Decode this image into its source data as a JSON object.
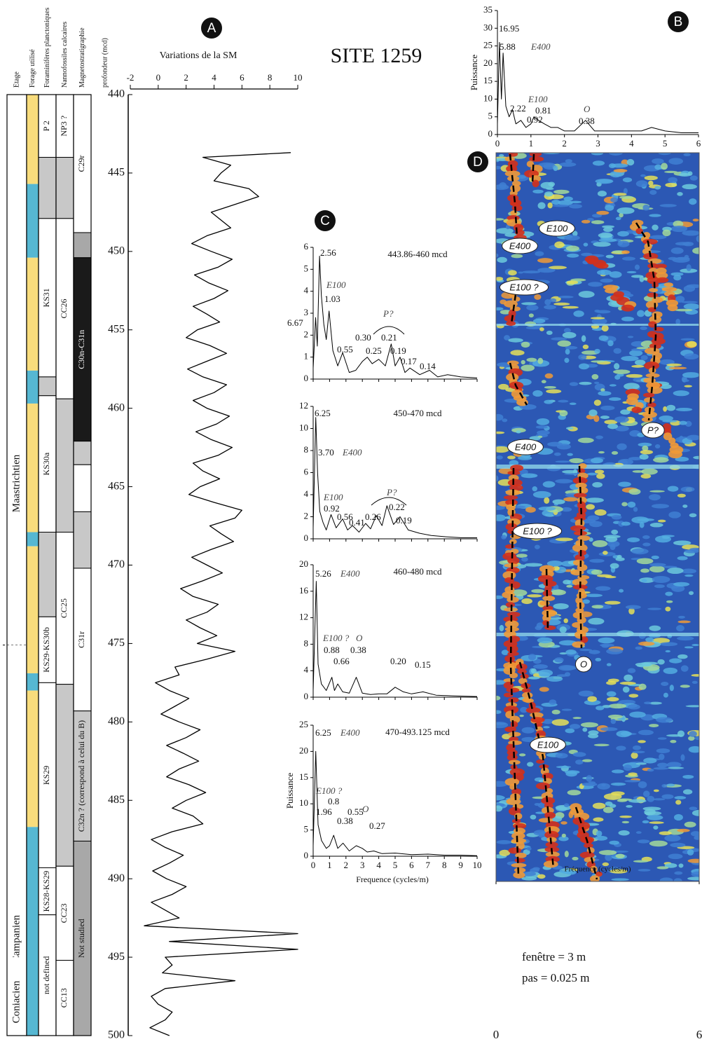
{
  "title": "SITE 1259",
  "footer_text": [
    "fenêtre = 3 m",
    "pas = 0.025 m"
  ],
  "stratigraphy": {
    "columns": [
      {
        "header": "Etage",
        "units": [
          {
            "label": "Maastrichtien",
            "top": 440,
            "bottom": 475.1,
            "color": "#ffffff",
            "boundary": "dashed"
          },
          {
            "label": "Campanien",
            "top": 475.1,
            "bottom": 495,
            "color": "#ffffff"
          },
          {
            "label": "Coniacien",
            "top": 495,
            "bottom": 500,
            "color": "#ffffff"
          }
        ]
      },
      {
        "header": "Forage utilisé",
        "units": [
          {
            "top": 440,
            "bottom": 445.7,
            "color": "#f8dc7c"
          },
          {
            "top": 445.7,
            "bottom": 450.4,
            "color": "#56b7d2"
          },
          {
            "top": 450.4,
            "bottom": 457.6,
            "color": "#f8dc7c"
          },
          {
            "top": 457.6,
            "bottom": 459.7,
            "color": "#56b7d2"
          },
          {
            "top": 459.7,
            "bottom": 467.9,
            "color": "#f8dc7c"
          },
          {
            "top": 467.9,
            "bottom": 468.8,
            "color": "#56b7d2"
          },
          {
            "top": 468.8,
            "bottom": 476.9,
            "color": "#f8dc7c"
          },
          {
            "top": 476.9,
            "bottom": 478,
            "color": "#56b7d2"
          },
          {
            "top": 478,
            "bottom": 486.7,
            "color": "#f8dc7c"
          },
          {
            "top": 486.7,
            "bottom": 500,
            "color": "#56b7d2"
          }
        ]
      },
      {
        "header": "Foraminifères planctoniques",
        "units": [
          {
            "label": "P 2",
            "top": 440,
            "bottom": 444,
            "color": "#ffffff"
          },
          {
            "top": 444,
            "bottom": 447.9,
            "color": "#c8c8c8"
          },
          {
            "label": "KS31",
            "top": 447.9,
            "bottom": 458,
            "color": "#ffffff"
          },
          {
            "top": 458,
            "bottom": 459.2,
            "color": "#c8c8c8"
          },
          {
            "label": "KS30a",
            "top": 459.2,
            "bottom": 467.9,
            "color": "#ffffff"
          },
          {
            "top": 467.9,
            "bottom": 473.3,
            "color": "#c8c8c8"
          },
          {
            "label": "KS29-KS30b",
            "top": 473.3,
            "bottom": 477.5,
            "color": "#ffffff"
          },
          {
            "label": "KS29",
            "top": 477.5,
            "bottom": 489.3,
            "color": "#ffffff"
          },
          {
            "label": "KS28-KS29",
            "top": 489.3,
            "bottom": 492.3,
            "color": "#ffffff"
          },
          {
            "label": "not defined",
            "top": 492.3,
            "bottom": 500,
            "color": "#ffffff"
          }
        ]
      },
      {
        "header": "Nannofossiles calcaires",
        "units": [
          {
            "label": "NP3 ?",
            "top": 440,
            "bottom": 444,
            "color": "#ffffff"
          },
          {
            "top": 444,
            "bottom": 447.9,
            "color": "#c8c8c8"
          },
          {
            "label": "CC26",
            "top": 447.9,
            "bottom": 459.4,
            "color": "#ffffff"
          },
          {
            "top": 459.4,
            "bottom": 467.9,
            "color": "#c8c8c8"
          },
          {
            "label": "CC25",
            "top": 467.9,
            "bottom": 477.6,
            "color": "#ffffff"
          },
          {
            "top": 477.6,
            "bottom": 489.2,
            "color": "#c8c8c8"
          },
          {
            "label": "CC23",
            "top": 489.2,
            "bottom": 495.2,
            "color": "#ffffff"
          },
          {
            "label": "CC13",
            "top": 495.2,
            "bottom": 500,
            "color": "#ffffff"
          }
        ]
      },
      {
        "header": "Magnetostratigraphie",
        "units": [
          {
            "label": "C29r",
            "top": 440,
            "bottom": 448.8,
            "color": "#ffffff"
          },
          {
            "top": 448.8,
            "bottom": 450.4,
            "color": "#a8a8a8"
          },
          {
            "label": "C30n-C31n",
            "top": 450.4,
            "bottom": 462.1,
            "color": "#1a1a1a"
          },
          {
            "top": 462.1,
            "bottom": 463.6,
            "color": "#c8c8c8"
          },
          {
            "top": 463.6,
            "bottom": 466.6,
            "color": "#ffffff"
          },
          {
            "top": 466.6,
            "bottom": 470.2,
            "color": "#c8c8c8"
          },
          {
            "label": "C31r",
            "top": 470.2,
            "bottom": 479.3,
            "color": "#ffffff"
          },
          {
            "label": "C32n ? (correspond à celui du B)",
            "top": 479.3,
            "bottom": 487.6,
            "color": "#c8c8c8"
          },
          {
            "label": "Not studied",
            "top": 487.6,
            "bottom": 500,
            "color": "#a8a8a8"
          }
        ]
      }
    ]
  },
  "chart_data": [
    {
      "type": "line",
      "panel": "A",
      "title": "Variations de la SM",
      "xlabel": "profondeur (mcd)",
      "orientation": "vertical",
      "color": "#000000",
      "xlim": [
        440,
        500
      ],
      "xticks": [
        440,
        445,
        450,
        455,
        460,
        465,
        470,
        475,
        480,
        485,
        490,
        495,
        500
      ],
      "ylim": [
        -2,
        10
      ],
      "yticks": [
        -2,
        0,
        2,
        4,
        6,
        8,
        10
      ],
      "x": [
        443.7,
        444,
        444.5,
        445,
        445.5,
        446,
        446.5,
        447,
        447.5,
        448,
        448.5,
        449,
        449.5,
        450,
        450.5,
        451,
        451.5,
        452,
        452.5,
        453,
        453.5,
        454,
        454.5,
        455,
        455.5,
        456,
        456.5,
        457,
        457.5,
        458,
        458.5,
        459,
        459.5,
        460,
        460.5,
        461,
        461.5,
        462,
        462.5,
        463,
        463.5,
        464,
        464.5,
        465,
        465.5,
        466,
        466.5,
        467,
        467.5,
        468,
        468.5,
        469,
        469.5,
        470,
        470.5,
        471,
        471.5,
        472,
        472.5,
        473,
        473.5,
        474,
        474.5,
        475,
        475.5,
        476,
        476.5,
        477,
        477.5,
        478,
        478.5,
        479,
        479.5,
        480,
        480.5,
        481,
        481.5,
        482,
        482.5,
        483,
        483.5,
        484,
        484.5,
        485,
        485.5,
        486,
        486.5,
        487,
        487.5,
        488,
        488.5,
        489,
        489.5,
        490,
        490.5,
        491,
        491.5,
        492,
        492.5,
        493,
        493.5,
        494,
        494.5,
        495,
        495.5,
        496,
        496.5,
        497,
        497.5,
        498,
        498.5,
        499,
        499.5,
        500
      ],
      "values": [
        9.5,
        3.2,
        5.2,
        4.5,
        4.0,
        6.5,
        7.2,
        5.5,
        3.8,
        4.5,
        5.2,
        3.5,
        2.4,
        3.8,
        5.3,
        4.3,
        2.6,
        3.6,
        5.0,
        4.0,
        2.5,
        3.5,
        4.4,
        2.8,
        2.0,
        3.7,
        4.9,
        3.5,
        2.1,
        3.2,
        4.9,
        4.0,
        2.5,
        3.5,
        5.1,
        4.2,
        2.7,
        3.8,
        5.3,
        4.3,
        2.5,
        3.2,
        4.4,
        3.0,
        2.2,
        4.0,
        6.0,
        5.5,
        3.7,
        4.5,
        5.4,
        3.8,
        2.4,
        3.5,
        4.6,
        3.2,
        1.6,
        2.5,
        4.3,
        3.5,
        2.0,
        3.0,
        4.2,
        2.8,
        5.5,
        3.5,
        1.2,
        1.5,
        -0.2,
        0.8,
        2.2,
        1.2,
        0.2,
        1.5,
        3.0,
        2.0,
        0.6,
        1.8,
        2.9,
        1.5,
        0.6,
        2.2,
        3.4,
        2.0,
        1.0,
        2.5,
        3.2,
        1.0,
        -0.5,
        0.5,
        1.8,
        0.8,
        -0.4,
        0.6,
        2.0,
        1.0,
        -0.5,
        0.5,
        1.5,
        -1.0,
        10,
        0.8,
        10,
        0.5,
        1.0,
        0.3,
        5.5,
        0.5,
        -0.5,
        0.0,
        1.0,
        0.5,
        -0.6,
        0.8
      ]
    },
    {
      "type": "line",
      "panel": "B",
      "ylabel": "Puissance",
      "color": "#000000",
      "xlim": [
        0,
        6
      ],
      "xticks": [
        0,
        1,
        2,
        3,
        4,
        5,
        6
      ],
      "xtick_labels": true,
      "ylim": [
        0,
        35
      ],
      "yticks": [
        0,
        5,
        10,
        15,
        20,
        25,
        30,
        35
      ],
      "x": [
        0,
        0.06,
        0.12,
        0.17,
        0.25,
        0.35,
        0.45,
        0.55,
        0.7,
        0.85,
        1.0,
        1.09,
        1.23,
        1.4,
        1.6,
        1.8,
        2.0,
        2.3,
        2.63,
        2.9,
        3.3,
        3.8,
        4.3,
        4.6,
        5.0,
        5.5,
        6.0
      ],
      "values": [
        3,
        26,
        10,
        23,
        8,
        5,
        7,
        3,
        4,
        2,
        3,
        5,
        4,
        3,
        2,
        2,
        1,
        1,
        4,
        1,
        1,
        1,
        1,
        2,
        1,
        0.5,
        0.5
      ],
      "annotations": [
        {
          "text": "16.95"
        },
        {
          "text": "5.88"
        },
        {
          "text": "E400",
          "italic": true
        },
        {
          "text": "2.22"
        },
        {
          "text": "E100",
          "italic": true
        },
        {
          "text": "0.81"
        },
        {
          "text": "0.92"
        },
        {
          "text": "O",
          "italic": true
        },
        {
          "text": "0.38"
        }
      ]
    },
    {
      "type": "line",
      "panel": "C",
      "subtitle": "443.86-460 mcd",
      "color": "#000000",
      "xlim": [
        0,
        10
      ],
      "xticks": [
        0,
        1,
        2,
        3,
        4,
        5,
        6,
        7,
        8,
        9,
        10
      ],
      "xtick_labels": false,
      "ylim": [
        0,
        6
      ],
      "yticks": [
        0,
        1,
        2,
        3,
        4,
        5,
        6
      ],
      "x": [
        0,
        0.15,
        0.25,
        0.39,
        0.5,
        0.65,
        0.8,
        0.97,
        1.2,
        1.5,
        1.8,
        2.2,
        2.6,
        3.0,
        3.3,
        3.6,
        4.0,
        4.4,
        4.76,
        5.0,
        5.3,
        5.6,
        5.9,
        6.5,
        7.1,
        7.6,
        8.2,
        9,
        10
      ],
      "values": [
        0.5,
        2.8,
        1.5,
        5.6,
        3.8,
        2.5,
        1.8,
        3.1,
        1.3,
        0.6,
        1.2,
        0.3,
        0.4,
        0.8,
        1.0,
        0.7,
        0.9,
        0.6,
        1.6,
        0.6,
        1.0,
        0.3,
        0.5,
        0.2,
        0.4,
        0.1,
        0.2,
        0.1,
        0.05
      ],
      "annotations": [
        {
          "text": "2.56"
        },
        {
          "text": "E100",
          "italic": true
        },
        {
          "text": "1.03"
        },
        {
          "text": "6.67"
        },
        {
          "text": "0.55"
        },
        {
          "text": "0.30"
        },
        {
          "text": "P?",
          "italic": true
        },
        {
          "text": "0.21"
        },
        {
          "text": "0.25"
        },
        {
          "text": "0.19"
        },
        {
          "text": "0.17"
        },
        {
          "text": "0.14"
        }
      ]
    },
    {
      "type": "line",
      "subtitle": "450-470 mcd",
      "color": "#000000",
      "xlim": [
        0,
        10
      ],
      "xticks": [
        0,
        1,
        2,
        3,
        4,
        5,
        6,
        7,
        8,
        9,
        10
      ],
      "xtick_labels": false,
      "ylim": [
        0,
        12
      ],
      "yticks": [
        0,
        2,
        4,
        6,
        8,
        10,
        12
      ],
      "x": [
        0,
        0.16,
        0.27,
        0.4,
        0.6,
        0.8,
        1.09,
        1.4,
        1.8,
        2.1,
        2.4,
        2.8,
        3.2,
        3.5,
        3.85,
        4.2,
        4.5,
        4.9,
        5.3,
        5.8,
        6.5,
        7.2,
        8,
        9,
        10
      ],
      "values": [
        1,
        11,
        6,
        2.5,
        1.5,
        0.8,
        2.2,
        1.0,
        1.8,
        0.8,
        1.2,
        0.6,
        1.4,
        0.9,
        2.1,
        1.2,
        3.0,
        1.3,
        2.0,
        0.8,
        0.5,
        0.3,
        0.2,
        0.1,
        0.1
      ],
      "annotations": [
        {
          "text": "6.25"
        },
        {
          "text": "3.70"
        },
        {
          "text": "E400",
          "italic": true
        },
        {
          "text": "E100",
          "italic": true
        },
        {
          "text": "0.92"
        },
        {
          "text": "0.56"
        },
        {
          "text": "0.41"
        },
        {
          "text": "0.26"
        },
        {
          "text": "P?",
          "italic": true
        },
        {
          "text": "0.22"
        },
        {
          "text": "0.19"
        }
      ]
    },
    {
      "type": "line",
      "subtitle": "460-480 mcd",
      "color": "#000000",
      "xlim": [
        0,
        10
      ],
      "xticks": [
        0,
        1,
        2,
        3,
        4,
        5,
        6,
        7,
        8,
        9,
        10
      ],
      "xtick_labels": false,
      "ylim": [
        0,
        20
      ],
      "yticks": [
        0,
        4,
        8,
        12,
        16,
        20
      ],
      "x": [
        0,
        0.19,
        0.3,
        0.5,
        0.8,
        1.14,
        1.3,
        1.5,
        1.8,
        2.2,
        2.63,
        3,
        3.5,
        4,
        4.5,
        5,
        5.5,
        6,
        6.7,
        7.5,
        8.5,
        10
      ],
      "values": [
        1,
        17.5,
        5,
        2,
        1,
        3,
        1,
        2,
        0.8,
        0.6,
        3,
        0.6,
        0.4,
        0.5,
        0.5,
        1.5,
        0.8,
        0.5,
        0.8,
        0.3,
        0.2,
        0.1
      ],
      "annotations": [
        {
          "text": "5.26"
        },
        {
          "text": "E400",
          "italic": true
        },
        {
          "text": "E100 ?",
          "italic": true
        },
        {
          "text": "O",
          "italic": true
        },
        {
          "text": "0.88"
        },
        {
          "text": "0.66"
        },
        {
          "text": "0.38"
        },
        {
          "text": "0.20"
        },
        {
          "text": "0.15"
        }
      ]
    },
    {
      "type": "line",
      "subtitle": "470-493.125 mcd",
      "xlabel": "Frequence (cycles/m)",
      "ylabel": "Puissance",
      "color": "#000000",
      "xlim": [
        0,
        10
      ],
      "xticks": [
        0,
        1,
        2,
        3,
        4,
        5,
        6,
        7,
        8,
        9,
        10
      ],
      "xtick_labels": true,
      "ylim": [
        0,
        25
      ],
      "yticks": [
        0,
        5,
        10,
        15,
        20,
        25
      ],
      "x": [
        0,
        0.16,
        0.3,
        0.51,
        0.8,
        1.0,
        1.25,
        1.5,
        1.82,
        2.2,
        2.63,
        3,
        3.3,
        3.7,
        4.2,
        5,
        6,
        7,
        8,
        9,
        10
      ],
      "values": [
        2,
        20,
        6,
        3,
        1.5,
        2,
        4,
        1.5,
        2.5,
        1,
        2,
        1.5,
        0.8,
        1,
        0.5,
        0.6,
        0.3,
        0.4,
        0.2,
        0.2,
        0.1
      ],
      "annotations": [
        {
          "text": "6.25"
        },
        {
          "text": "E400",
          "italic": true
        },
        {
          "text": "E100 ?",
          "italic": true
        },
        {
          "text": "0.8"
        },
        {
          "text": "1.96"
        },
        {
          "text": "0.55"
        },
        {
          "text": "O",
          "italic": true
        },
        {
          "text": "0.38"
        },
        {
          "text": "0.27"
        }
      ]
    },
    {
      "type": "heatmap",
      "panel": "D",
      "xlabel": "Fréquence (cycles/m)",
      "xlim": [
        0,
        6
      ],
      "xticks": [
        0,
        6
      ],
      "annotations": [
        {
          "text": "E400"
        },
        {
          "text": "E100"
        },
        {
          "text": "E100 ?"
        },
        {
          "text": "E400"
        },
        {
          "text": "P?"
        },
        {
          "text": "E100 ?"
        },
        {
          "text": "O"
        },
        {
          "text": "E100"
        }
      ]
    }
  ]
}
